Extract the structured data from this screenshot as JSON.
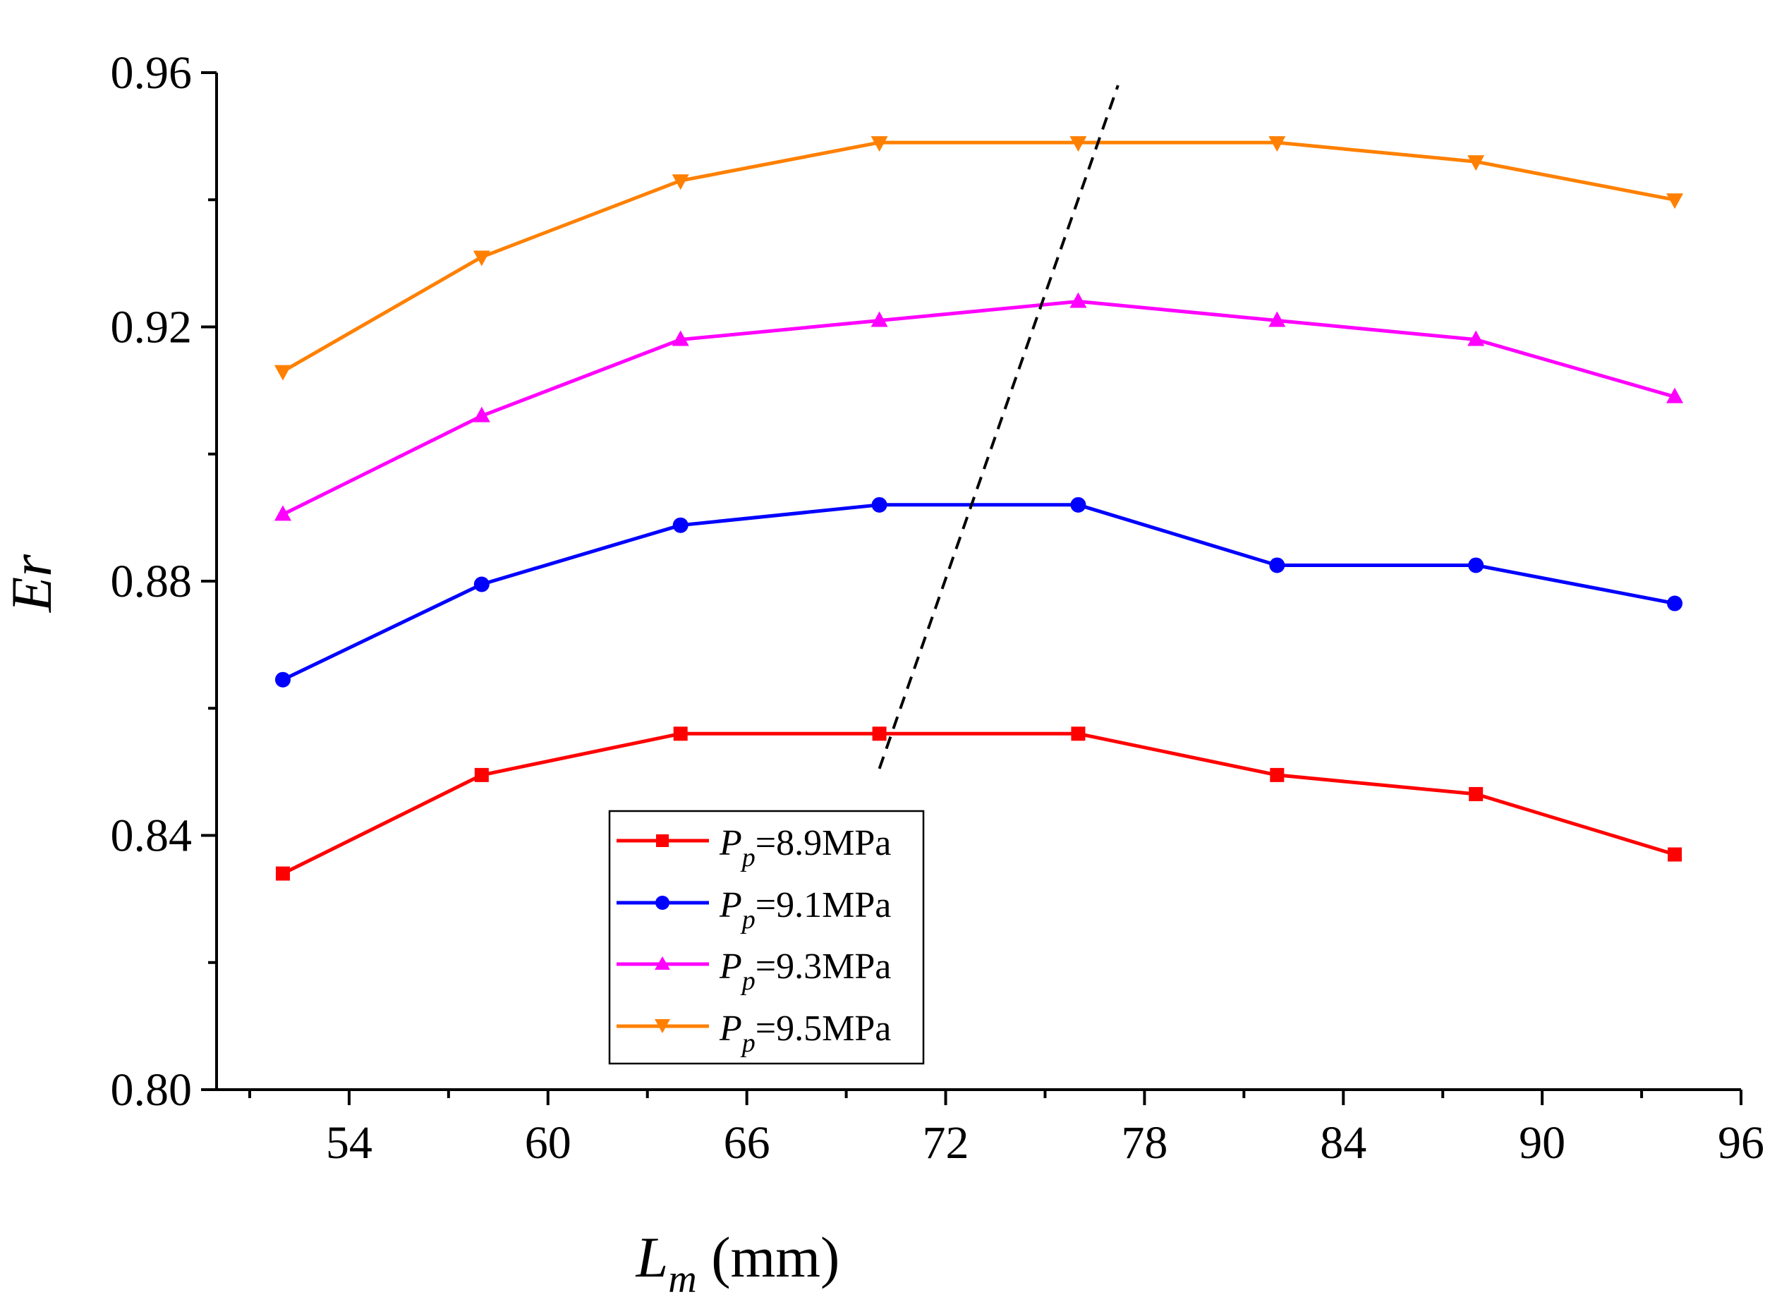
{
  "chart_data": {
    "type": "line",
    "title": "",
    "xlabel": {
      "symbol": "L",
      "subscript": "m",
      "unit": " (mm)"
    },
    "ylabel": "Er",
    "xlim": [
      50,
      96
    ],
    "ylim": [
      0.8,
      0.96
    ],
    "x_ticks": [
      54,
      60,
      66,
      72,
      78,
      84,
      90,
      96
    ],
    "x_tick_labels": [
      "54",
      "60",
      "66",
      "72",
      "78",
      "84",
      "90",
      "96"
    ],
    "x_minor_ticks": [
      51,
      57,
      63,
      69,
      75,
      81,
      87,
      93
    ],
    "y_ticks": [
      0.8,
      0.84,
      0.88,
      0.92,
      0.96
    ],
    "y_tick_labels": [
      "0.80",
      "0.84",
      "0.88",
      "0.92",
      "0.96"
    ],
    "y_minor_ticks": [
      0.82,
      0.86,
      0.9,
      0.94
    ],
    "grid": false,
    "legend_position": "bottom-center",
    "x": [
      52,
      58,
      64,
      70,
      76,
      82,
      88,
      94
    ],
    "series": [
      {
        "name": "8.9MPa",
        "legend_symbol": "P",
        "legend_subscript": "p",
        "legend_value": "=8.9MPa",
        "color": "#ff0000",
        "marker": "square",
        "values": [
          0.834,
          0.8495,
          0.856,
          0.856,
          0.856,
          0.8495,
          0.8465,
          0.837
        ]
      },
      {
        "name": "9.1MPa",
        "legend_symbol": "P",
        "legend_subscript": "p",
        "legend_value": "=9.1MPa",
        "color": "#0000ff",
        "marker": "circle",
        "values": [
          0.8645,
          0.8795,
          0.8888,
          0.892,
          0.892,
          0.8825,
          0.8825,
          0.8765
        ]
      },
      {
        "name": "9.3MPa",
        "legend_symbol": "P",
        "legend_subscript": "p",
        "legend_value": "=9.3MPa",
        "color": "#ff00ff",
        "marker": "triangle-up",
        "values": [
          0.8905,
          0.906,
          0.918,
          0.921,
          0.924,
          0.921,
          0.918,
          0.909
        ]
      },
      {
        "name": "9.5MPa",
        "legend_symbol": "P",
        "legend_subscript": "p",
        "legend_value": "=9.5MPa",
        "color": "#ff8000",
        "marker": "triangle-down",
        "values": [
          0.913,
          0.931,
          0.943,
          0.949,
          0.949,
          0.949,
          0.946,
          0.94
        ]
      }
    ],
    "annotations": [
      {
        "type": "dashed-line",
        "color": "#000000",
        "from": {
          "x": 70,
          "y": 0.8505
        },
        "to": {
          "x": 77.2,
          "y": 0.958
        }
      }
    ]
  }
}
